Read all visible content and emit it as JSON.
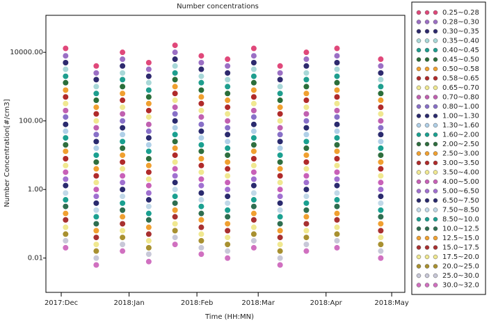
{
  "chart_data": {
    "type": "scatter",
    "title": "Number concentrations",
    "xlabel": "Time (HH:MN)",
    "ylabel": "Number Concentration[#/cm3]",
    "yscale": "log",
    "x": [
      2,
      16,
      28,
      40,
      52,
      64,
      76,
      88,
      100,
      112,
      126,
      146
    ],
    "xlim": [
      -7,
      157
    ],
    "xticks": [
      {
        "value": 0,
        "label": "2017:Dec"
      },
      {
        "value": 31,
        "label": "2018:Jan"
      },
      {
        "value": 62,
        "label": "2018:Feb"
      },
      {
        "value": 90,
        "label": "2018:Mar"
      },
      {
        "value": 121,
        "label": "2018:Apr"
      },
      {
        "value": 151,
        "label": "2018:May"
      }
    ],
    "ylim": [
      0.001,
      120000
    ],
    "yticks": [
      {
        "value": 0.01,
        "label": "0.01"
      },
      {
        "value": 1,
        "label": "1.00"
      },
      {
        "value": 100,
        "label": "100.00"
      },
      {
        "value": 10000,
        "label": "10000.00"
      }
    ],
    "series": [
      {
        "name": "0.25~0.28",
        "color": "#e0487a",
        "values": [
          13000,
          4000,
          10000,
          5000,
          16000,
          7900,
          6300,
          13000,
          4000,
          10000,
          13000,
          6300
        ]
      },
      {
        "name": "0.28~0.30",
        "color": "#9b6fc4",
        "values": [
          7900,
          2500,
          6300,
          3200,
          10000,
          5000,
          4000,
          7900,
          2500,
          6300,
          7900,
          4000
        ]
      },
      {
        "name": "0.30~0.35",
        "color": "#2e2a6e",
        "values": [
          5000,
          1600,
          4000,
          2000,
          6300,
          3200,
          2500,
          5000,
          1600,
          4000,
          5000,
          2500
        ]
      },
      {
        "name": "0.35~0.40",
        "color": "#a8d8d8",
        "values": [
          3200,
          1000,
          2500,
          1300,
          4000,
          2000,
          1600,
          3200,
          1000,
          2500,
          3200,
          1600
        ]
      },
      {
        "name": "0.40~0.45",
        "color": "#1e9e8e",
        "values": [
          2000,
          630,
          1600,
          790,
          2500,
          1300,
          1000,
          2000,
          630,
          1600,
          2000,
          1000
        ]
      },
      {
        "name": "0.45~0.50",
        "color": "#2a6e3a",
        "values": [
          1300,
          400,
          1000,
          500,
          1600,
          790,
          630,
          1300,
          400,
          1000,
          1300,
          630
        ]
      },
      {
        "name": "0.50~0.58",
        "color": "#f0a030",
        "values": [
          790,
          250,
          630,
          320,
          1000,
          500,
          400,
          790,
          250,
          630,
          790,
          400
        ]
      },
      {
        "name": "0.58~0.65",
        "color": "#b02a2a",
        "values": [
          500,
          160,
          400,
          200,
          630,
          320,
          250,
          500,
          160,
          400,
          500,
          250
        ]
      },
      {
        "name": "0.65~0.70",
        "color": "#f0e890",
        "values": [
          320,
          100,
          250,
          130,
          400,
          200,
          160,
          320,
          100,
          250,
          320,
          160
        ]
      },
      {
        "name": "0.70~0.80",
        "color": "#c060b0",
        "values": [
          200,
          63,
          160,
          79,
          250,
          130,
          100,
          200,
          63,
          160,
          200,
          100
        ]
      },
      {
        "name": "0.80~1.00",
        "color": "#8870c8",
        "values": [
          130,
          40,
          100,
          50,
          160,
          79,
          63,
          130,
          40,
          100,
          130,
          63
        ]
      },
      {
        "name": "1.00~1.30",
        "color": "#2a2a6e",
        "values": [
          79,
          25,
          63,
          32,
          100,
          50,
          40,
          79,
          25,
          63,
          79,
          40
        ]
      },
      {
        "name": "1.30~1.60",
        "color": "#b0d0e8",
        "values": [
          50,
          16,
          40,
          20,
          63,
          32,
          25,
          50,
          16,
          40,
          50,
          25
        ]
      },
      {
        "name": "1.60~2.00",
        "color": "#1aa090",
        "values": [
          32,
          10,
          25,
          13,
          40,
          20,
          16,
          32,
          10,
          25,
          32,
          16
        ]
      },
      {
        "name": "2.00~2.50",
        "color": "#2e6e3e",
        "values": [
          20,
          6.3,
          16,
          7.9,
          25,
          13,
          10,
          20,
          6.3,
          16,
          20,
          10
        ]
      },
      {
        "name": "2.50~3.00",
        "color": "#f0a030",
        "values": [
          13,
          4,
          10,
          5,
          16,
          7.9,
          6.3,
          13,
          4,
          10,
          13,
          6.3
        ]
      },
      {
        "name": "3.00~3.50",
        "color": "#b02a2a",
        "values": [
          7.9,
          2.5,
          6.3,
          3.2,
          10,
          5,
          4,
          7.9,
          2.5,
          6.3,
          7.9,
          4
        ]
      },
      {
        "name": "3.50~4.00",
        "color": "#f0e890",
        "values": [
          5,
          1.6,
          4,
          2,
          6.3,
          3.2,
          2.5,
          5,
          1.6,
          4,
          5,
          2.5
        ]
      },
      {
        "name": "4.00~5.00",
        "color": "#c860b8",
        "values": [
          3.2,
          1,
          2.5,
          1.3,
          4,
          2,
          1.6,
          3.2,
          1,
          2.5,
          3.2,
          1.6
        ]
      },
      {
        "name": "5.00~6.50",
        "color": "#a070d0",
        "values": [
          2,
          0.63,
          1.6,
          0.79,
          2.5,
          1.3,
          1,
          2,
          0.63,
          1.6,
          2,
          1
        ]
      },
      {
        "name": "6.50~7.50",
        "color": "#2a2a6e",
        "values": [
          1.3,
          0.4,
          1,
          0.5,
          1.6,
          0.79,
          0.63,
          1.3,
          0.4,
          1,
          1.3,
          0.63
        ]
      },
      {
        "name": "7.50~8.50",
        "color": "#c0d8e8",
        "values": [
          0.79,
          0.25,
          0.63,
          0.32,
          1,
          0.5,
          0.4,
          0.79,
          0.25,
          0.63,
          0.79,
          0.4
        ]
      },
      {
        "name": "8.50~10.0",
        "color": "#1aa090",
        "values": [
          0.5,
          0.16,
          0.4,
          0.2,
          0.63,
          0.32,
          0.25,
          0.5,
          0.16,
          0.4,
          0.5,
          0.25
        ]
      },
      {
        "name": "10.0~12.5",
        "color": "#2e6e50",
        "values": [
          0.32,
          0.1,
          0.25,
          0.13,
          0.4,
          0.2,
          0.16,
          0.32,
          0.1,
          0.25,
          0.32,
          0.16
        ]
      },
      {
        "name": "12.5~15.0",
        "color": "#f0a030",
        "values": [
          0.2,
          0.063,
          0.16,
          0.079,
          0.25,
          0.13,
          0.1,
          0.2,
          0.063,
          0.16,
          0.2,
          0.1
        ]
      },
      {
        "name": "15.0~17.5",
        "color": "#a83030",
        "values": [
          0.13,
          0.04,
          0.1,
          0.05,
          0.16,
          0.079,
          0.063,
          0.13,
          0.04,
          0.1,
          0.13,
          0.063
        ]
      },
      {
        "name": "17.5~20.0",
        "color": "#f0e890",
        "values": [
          0.079,
          0.025,
          0.063,
          0.032,
          0.1,
          0.05,
          0.04,
          0.079,
          0.025,
          0.063,
          0.079,
          0.04
        ]
      },
      {
        "name": "20.0~25.0",
        "color": "#a89030",
        "values": [
          0.05,
          0.016,
          0.04,
          0.02,
          0.063,
          0.032,
          0.025,
          0.05,
          0.016,
          0.04,
          0.05,
          0.025
        ]
      },
      {
        "name": "25.0~30.0",
        "color": "#c8c8d8",
        "values": [
          0.032,
          0.01,
          0.025,
          0.013,
          0.04,
          0.02,
          0.016,
          0.032,
          0.01,
          0.025,
          0.032,
          0.016
        ]
      },
      {
        "name": "30.0~32.0",
        "color": "#d070c0",
        "values": [
          0.02,
          0.0063,
          0.016,
          0.0079,
          0.025,
          0.013,
          0.01,
          0.02,
          0.0063,
          0.016,
          0.02,
          0.01
        ]
      }
    ]
  }
}
